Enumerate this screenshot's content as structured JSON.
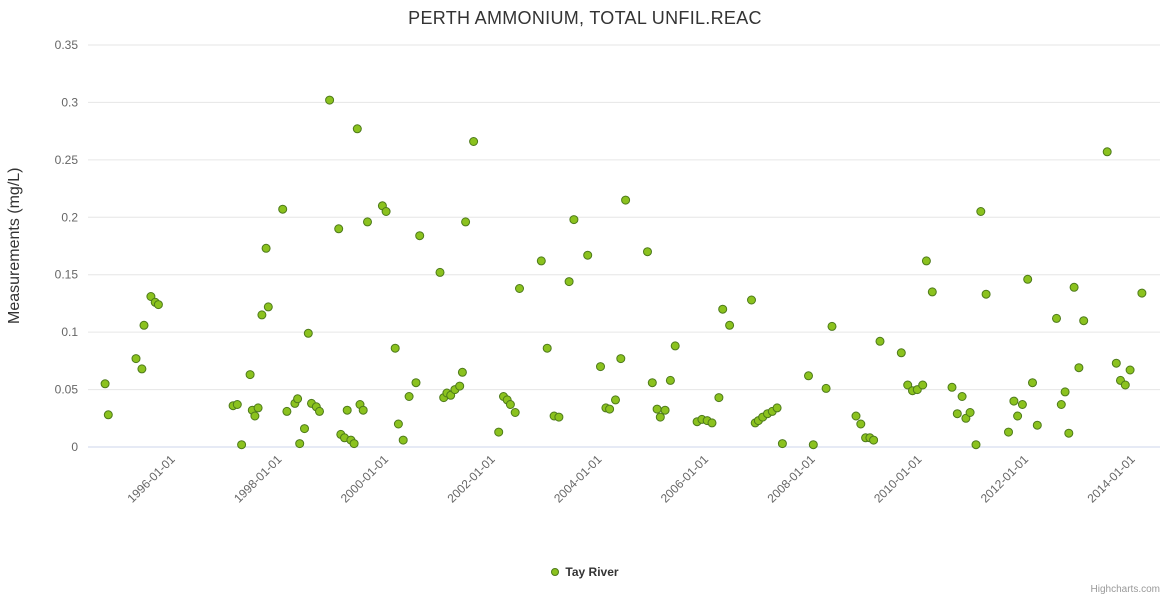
{
  "chart": {
    "title": "PERTH AMMONIUM, TOTAL UNFIL.REAC",
    "y_axis_title": "Measurements (mg/L)",
    "legend_label": "Tay River",
    "credits": "Highcharts.com"
  },
  "chart_data": {
    "type": "scatter",
    "title": "PERTH AMMONIUM, TOTAL UNFIL.REAC",
    "xlabel": "",
    "ylabel": "Measurements (mg/L)",
    "x_unit": "decimal_year",
    "x_range": [
      1994.45,
      2014.55
    ],
    "y_range": [
      0,
      0.35
    ],
    "grid": "horizontal",
    "legend_position": "bottom-center",
    "x_ticks": {
      "values": [
        1996,
        1998,
        2000,
        2002,
        2004,
        2006,
        2008,
        2010,
        2012,
        2014
      ],
      "labels": [
        "1996-01-01",
        "1998-01-01",
        "2000-01-01",
        "2002-01-01",
        "2004-01-01",
        "2006-01-01",
        "2008-01-01",
        "2010-01-01",
        "2012-01-01",
        "2014-01-01"
      ]
    },
    "y_ticks": {
      "values": [
        0,
        0.05,
        0.1,
        0.15,
        0.2,
        0.25,
        0.3,
        0.35
      ],
      "labels": [
        "0",
        "0.05",
        "0.1",
        "0.15",
        "0.2",
        "0.25",
        "0.3",
        "0.35"
      ]
    },
    "colors": {
      "point_fill": "#8bc21e",
      "point_stroke": "#4d7a1a",
      "grid": "#e6e6e6",
      "axis_line": "#ccd6eb",
      "title_text": "#333333",
      "axis_label_text": "#666666",
      "credits_text": "#999999"
    },
    "series": [
      {
        "name": "Tay River",
        "points": [
          [
            1994.77,
            0.055
          ],
          [
            1994.83,
            0.028
          ],
          [
            1995.35,
            0.077
          ],
          [
            1995.46,
            0.068
          ],
          [
            1995.5,
            0.106
          ],
          [
            1995.63,
            0.131
          ],
          [
            1995.71,
            0.126
          ],
          [
            1995.77,
            0.124
          ],
          [
            1997.17,
            0.036
          ],
          [
            1997.25,
            0.037
          ],
          [
            1997.33,
            0.002
          ],
          [
            1997.49,
            0.063
          ],
          [
            1997.53,
            0.032
          ],
          [
            1997.58,
            0.027
          ],
          [
            1997.64,
            0.034
          ],
          [
            1997.71,
            0.115
          ],
          [
            1997.79,
            0.173
          ],
          [
            1997.83,
            0.122
          ],
          [
            1998.1,
            0.207
          ],
          [
            1998.18,
            0.031
          ],
          [
            1998.33,
            0.038
          ],
          [
            1998.38,
            0.042
          ],
          [
            1998.42,
            0.003
          ],
          [
            1998.51,
            0.016
          ],
          [
            1998.58,
            0.099
          ],
          [
            1998.64,
            0.038
          ],
          [
            1998.73,
            0.035
          ],
          [
            1998.79,
            0.031
          ],
          [
            1998.98,
            0.302
          ],
          [
            1999.15,
            0.19
          ],
          [
            1999.19,
            0.011
          ],
          [
            1999.26,
            0.008
          ],
          [
            1999.31,
            0.032
          ],
          [
            1999.38,
            0.006
          ],
          [
            1999.44,
            0.003
          ],
          [
            1999.5,
            0.277
          ],
          [
            1999.55,
            0.037
          ],
          [
            1999.61,
            0.032
          ],
          [
            1999.69,
            0.196
          ],
          [
            1999.97,
            0.21
          ],
          [
            2000.04,
            0.205
          ],
          [
            2000.21,
            0.086
          ],
          [
            2000.27,
            0.02
          ],
          [
            2000.36,
            0.006
          ],
          [
            2000.47,
            0.044
          ],
          [
            2000.6,
            0.056
          ],
          [
            2000.67,
            0.184
          ],
          [
            2001.05,
            0.152
          ],
          [
            2001.12,
            0.043
          ],
          [
            2001.18,
            0.047
          ],
          [
            2001.25,
            0.045
          ],
          [
            2001.33,
            0.05
          ],
          [
            2001.42,
            0.053
          ],
          [
            2001.47,
            0.065
          ],
          [
            2001.53,
            0.196
          ],
          [
            2001.68,
            0.266
          ],
          [
            2002.15,
            0.013
          ],
          [
            2002.24,
            0.044
          ],
          [
            2002.31,
            0.041
          ],
          [
            2002.37,
            0.037
          ],
          [
            2002.46,
            0.03
          ],
          [
            2002.54,
            0.138
          ],
          [
            2002.95,
            0.162
          ],
          [
            2003.06,
            0.086
          ],
          [
            2003.19,
            0.027
          ],
          [
            2003.28,
            0.026
          ],
          [
            2003.47,
            0.144
          ],
          [
            2003.56,
            0.198
          ],
          [
            2003.82,
            0.167
          ],
          [
            2004.06,
            0.07
          ],
          [
            2004.16,
            0.034
          ],
          [
            2004.23,
            0.033
          ],
          [
            2004.34,
            0.041
          ],
          [
            2004.44,
            0.077
          ],
          [
            2004.53,
            0.215
          ],
          [
            2004.94,
            0.17
          ],
          [
            2005.03,
            0.056
          ],
          [
            2005.12,
            0.033
          ],
          [
            2005.18,
            0.026
          ],
          [
            2005.27,
            0.032
          ],
          [
            2005.37,
            0.058
          ],
          [
            2005.46,
            0.088
          ],
          [
            2005.87,
            0.022
          ],
          [
            2005.96,
            0.024
          ],
          [
            2006.06,
            0.023
          ],
          [
            2006.15,
            0.021
          ],
          [
            2006.28,
            0.043
          ],
          [
            2006.35,
            0.12
          ],
          [
            2006.48,
            0.106
          ],
          [
            2006.89,
            0.128
          ],
          [
            2006.96,
            0.021
          ],
          [
            2007.02,
            0.023
          ],
          [
            2007.1,
            0.026
          ],
          [
            2007.19,
            0.029
          ],
          [
            2007.28,
            0.031
          ],
          [
            2007.37,
            0.034
          ],
          [
            2007.47,
            0.003
          ],
          [
            2007.96,
            0.062
          ],
          [
            2008.05,
            0.002
          ],
          [
            2008.29,
            0.051
          ],
          [
            2008.4,
            0.105
          ],
          [
            2008.85,
            0.027
          ],
          [
            2008.94,
            0.02
          ],
          [
            2009.03,
            0.008
          ],
          [
            2009.11,
            0.008
          ],
          [
            2009.18,
            0.006
          ],
          [
            2009.3,
            0.092
          ],
          [
            2009.7,
            0.082
          ],
          [
            2009.82,
            0.054
          ],
          [
            2009.91,
            0.049
          ],
          [
            2010.0,
            0.05
          ],
          [
            2010.1,
            0.054
          ],
          [
            2010.17,
            0.162
          ],
          [
            2010.28,
            0.135
          ],
          [
            2010.65,
            0.052
          ],
          [
            2010.75,
            0.029
          ],
          [
            2010.84,
            0.044
          ],
          [
            2010.91,
            0.025
          ],
          [
            2010.99,
            0.03
          ],
          [
            2011.1,
            0.002
          ],
          [
            2011.19,
            0.205
          ],
          [
            2011.29,
            0.133
          ],
          [
            2011.71,
            0.013
          ],
          [
            2011.81,
            0.04
          ],
          [
            2011.88,
            0.027
          ],
          [
            2011.97,
            0.037
          ],
          [
            2012.07,
            0.146
          ],
          [
            2012.16,
            0.056
          ],
          [
            2012.25,
            0.019
          ],
          [
            2012.61,
            0.112
          ],
          [
            2012.7,
            0.037
          ],
          [
            2012.77,
            0.048
          ],
          [
            2012.84,
            0.012
          ],
          [
            2012.94,
            0.139
          ],
          [
            2013.03,
            0.069
          ],
          [
            2013.12,
            0.11
          ],
          [
            2013.56,
            0.257
          ],
          [
            2013.73,
            0.073
          ],
          [
            2013.81,
            0.058
          ],
          [
            2013.9,
            0.054
          ],
          [
            2013.99,
            0.067
          ],
          [
            2014.21,
            0.134
          ]
        ]
      }
    ]
  }
}
